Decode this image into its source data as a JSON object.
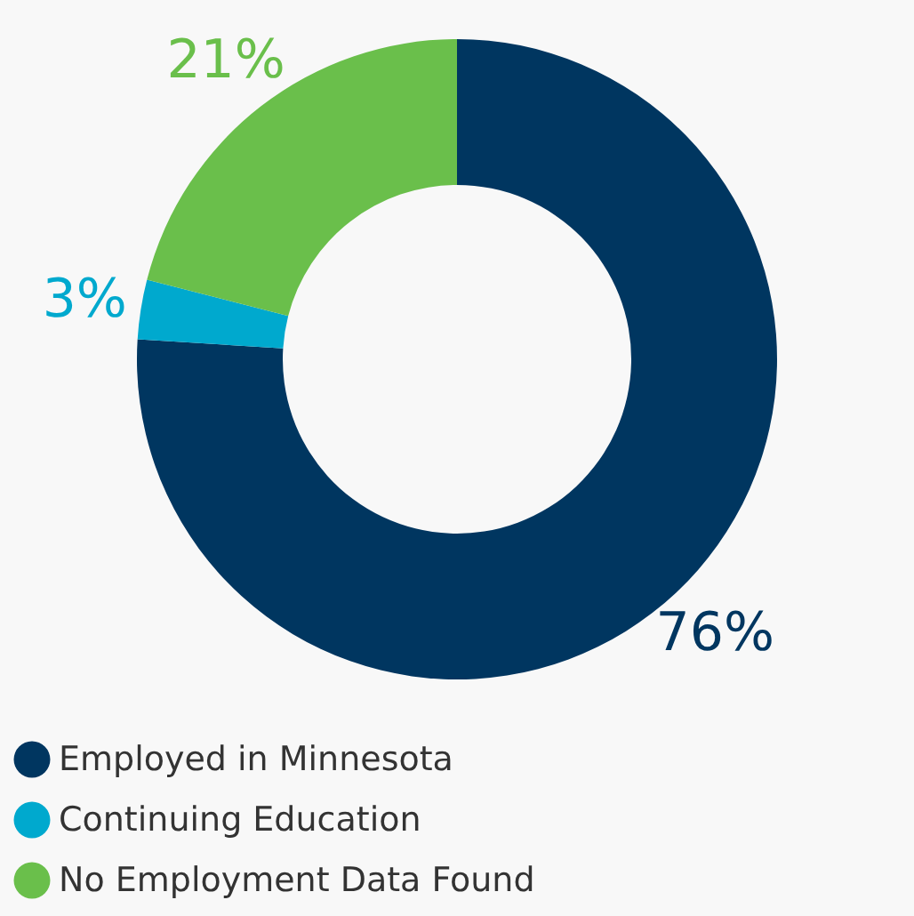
{
  "chart_data": {
    "type": "donut",
    "categories": [
      "Employed in Minnesota",
      "Continuing Education",
      "No Employment Data Found"
    ],
    "values": [
      76,
      3,
      21
    ],
    "colors": [
      "#003660",
      "#00a9ce",
      "#6abf4b"
    ],
    "value_labels": [
      "76%",
      "3%",
      "21%"
    ],
    "legend": "bottom"
  }
}
